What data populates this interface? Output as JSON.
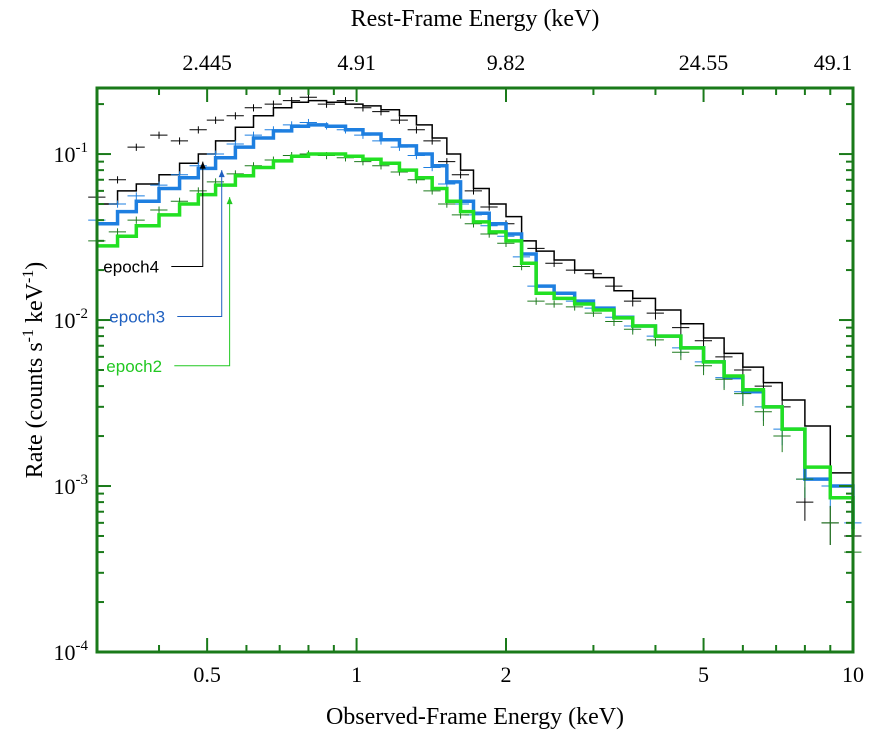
{
  "chart_data": {
    "type": "line",
    "title": "",
    "xlabel": "Observed-Frame Energy (keV)",
    "ylabel_base": "Rate (counts s",
    "ylabel_sup1": "-1",
    "ylabel_mid": " keV",
    "ylabel_sup2": "-1",
    "ylabel_end": ")",
    "top_xlabel": "Rest-Frame Energy (keV)",
    "xscale": "log",
    "yscale": "log",
    "xlim": [
      0.3,
      10
    ],
    "ylim": [
      0.0001,
      0.25
    ],
    "grid": false,
    "axis_color": "#1a7a1a",
    "x_ticks": [
      {
        "value": 0.5,
        "label": "0.5"
      },
      {
        "value": 1,
        "label": "1"
      },
      {
        "value": 2,
        "label": "2"
      },
      {
        "value": 5,
        "label": "5"
      },
      {
        "value": 10,
        "label": "10"
      }
    ],
    "y_ticks": [
      {
        "value": 0.1,
        "base": "10",
        "exp": "-1"
      },
      {
        "value": 0.01,
        "base": "10",
        "exp": "-2"
      },
      {
        "value": 0.001,
        "base": "10",
        "exp": "-3"
      },
      {
        "value": 0.0001,
        "base": "10",
        "exp": "-4"
      }
    ],
    "top_ticks": [
      {
        "value": 0.5,
        "label": "2.445"
      },
      {
        "value": 1,
        "label": "4.91"
      },
      {
        "value": 2,
        "label": "9.82"
      },
      {
        "value": 5,
        "label": "24.55"
      },
      {
        "value": 10,
        "label": "49.1"
      }
    ],
    "series": [
      {
        "name": "epoch4",
        "model_color": "#000000",
        "data_color": "#000000",
        "label_color": "#000000",
        "legend_anchor": [
          0.49,
          0.09
        ],
        "legend_label_at": [
          0.355,
          0.021
        ],
        "x": [
          0.3,
          0.33,
          0.36,
          0.4,
          0.44,
          0.48,
          0.52,
          0.57,
          0.62,
          0.68,
          0.74,
          0.8,
          0.87,
          0.95,
          1.03,
          1.12,
          1.22,
          1.32,
          1.42,
          1.52,
          1.62,
          1.72,
          1.85,
          2.0,
          2.15,
          2.3,
          2.5,
          2.75,
          3.0,
          3.3,
          3.6,
          4.0,
          4.5,
          5.0,
          5.5,
          6.0,
          6.6,
          7.2,
          8.0,
          9.0,
          10.0
        ],
        "model": [
          0.05,
          0.06,
          0.066,
          0.075,
          0.088,
          0.1,
          0.12,
          0.145,
          0.17,
          0.19,
          0.205,
          0.21,
          0.205,
          0.2,
          0.195,
          0.185,
          0.17,
          0.15,
          0.125,
          0.1,
          0.08,
          0.062,
          0.05,
          0.042,
          0.03,
          0.026,
          0.023,
          0.02,
          0.018,
          0.015,
          0.0135,
          0.0115,
          0.0095,
          0.0078,
          0.0063,
          0.0052,
          0.0042,
          0.0033,
          0.0023,
          0.0012,
          0.0007
        ],
        "points": [
          0.055,
          0.07,
          0.11,
          0.13,
          0.12,
          0.14,
          0.16,
          0.17,
          0.19,
          0.2,
          0.21,
          0.22,
          0.2,
          0.21,
          0.19,
          0.18,
          0.16,
          0.14,
          0.12,
          0.09,
          0.075,
          0.06,
          0.048,
          0.038,
          0.03,
          0.027,
          0.022,
          0.02,
          0.019,
          0.016,
          0.013,
          0.011,
          0.009,
          0.0075,
          0.006,
          0.005,
          0.004,
          0.003,
          0.0008,
          0.0006,
          0.0005
        ]
      },
      {
        "name": "epoch3",
        "model_color": "#1e7fe0",
        "data_color": "#1e7fe0",
        "label_color": "#1f60c0",
        "legend_anchor": [
          0.535,
          0.08
        ],
        "legend_label_at": [
          0.365,
          0.0105
        ],
        "x": [
          0.3,
          0.33,
          0.36,
          0.4,
          0.44,
          0.48,
          0.52,
          0.57,
          0.62,
          0.68,
          0.74,
          0.8,
          0.87,
          0.95,
          1.03,
          1.12,
          1.22,
          1.32,
          1.42,
          1.52,
          1.62,
          1.72,
          1.85,
          2.0,
          2.15,
          2.3,
          2.5,
          2.75,
          3.0,
          3.3,
          3.6,
          4.0,
          4.5,
          5.0,
          5.5,
          6.0,
          6.6,
          7.2,
          8.0,
          9.0,
          10.0
        ],
        "model": [
          0.038,
          0.045,
          0.052,
          0.062,
          0.072,
          0.082,
          0.095,
          0.11,
          0.125,
          0.138,
          0.147,
          0.15,
          0.147,
          0.14,
          0.132,
          0.122,
          0.112,
          0.1,
          0.085,
          0.068,
          0.052,
          0.044,
          0.038,
          0.033,
          0.025,
          0.016,
          0.0145,
          0.013,
          0.0118,
          0.0104,
          0.0092,
          0.008,
          0.0068,
          0.0056,
          0.0045,
          0.0037,
          0.003,
          0.0022,
          0.0011,
          0.001,
          0.00055
        ],
        "points": [
          0.04,
          0.05,
          0.056,
          0.065,
          0.075,
          0.085,
          0.1,
          0.115,
          0.13,
          0.14,
          0.15,
          0.155,
          0.148,
          0.14,
          0.13,
          0.12,
          0.11,
          0.098,
          0.083,
          0.066,
          0.05,
          0.043,
          0.037,
          0.032,
          0.024,
          0.016,
          0.0145,
          0.013,
          0.0118,
          0.0104,
          0.0092,
          0.008,
          0.0068,
          0.0056,
          0.0045,
          0.0037,
          0.003,
          0.0022,
          0.0011,
          0.001,
          0.0006
        ]
      },
      {
        "name": "epoch2",
        "model_color": "#22e022",
        "data_color": "#1f7a1f",
        "label_color": "#22c822",
        "legend_anchor": [
          0.555,
          0.055
        ],
        "legend_label_at": [
          0.36,
          0.0053
        ],
        "x": [
          0.3,
          0.33,
          0.36,
          0.4,
          0.44,
          0.48,
          0.52,
          0.57,
          0.62,
          0.68,
          0.74,
          0.8,
          0.87,
          0.95,
          1.03,
          1.12,
          1.22,
          1.32,
          1.42,
          1.52,
          1.62,
          1.72,
          1.85,
          2.0,
          2.15,
          2.3,
          2.5,
          2.75,
          3.0,
          3.3,
          3.6,
          4.0,
          4.5,
          5.0,
          5.5,
          6.0,
          6.6,
          7.2,
          8.0,
          9.0,
          10.0
        ],
        "model": [
          0.028,
          0.032,
          0.037,
          0.043,
          0.05,
          0.057,
          0.065,
          0.074,
          0.083,
          0.091,
          0.097,
          0.1,
          0.1,
          0.097,
          0.093,
          0.088,
          0.08,
          0.072,
          0.062,
          0.052,
          0.045,
          0.039,
          0.034,
          0.03,
          0.022,
          0.0145,
          0.0135,
          0.0125,
          0.0115,
          0.0103,
          0.0092,
          0.008,
          0.0068,
          0.0056,
          0.0046,
          0.0038,
          0.003,
          0.0022,
          0.0013,
          0.00085,
          0.0005
        ],
        "points": [
          0.03,
          0.034,
          0.04,
          0.046,
          0.052,
          0.06,
          0.068,
          0.076,
          0.085,
          0.092,
          0.098,
          0.1,
          0.098,
          0.095,
          0.09,
          0.085,
          0.078,
          0.07,
          0.06,
          0.05,
          0.043,
          0.038,
          0.033,
          0.029,
          0.021,
          0.013,
          0.0125,
          0.012,
          0.011,
          0.0098,
          0.0088,
          0.0076,
          0.0064,
          0.0053,
          0.0044,
          0.0036,
          0.0028,
          0.002,
          0.0011,
          0.0006,
          0.0004
        ]
      }
    ]
  }
}
